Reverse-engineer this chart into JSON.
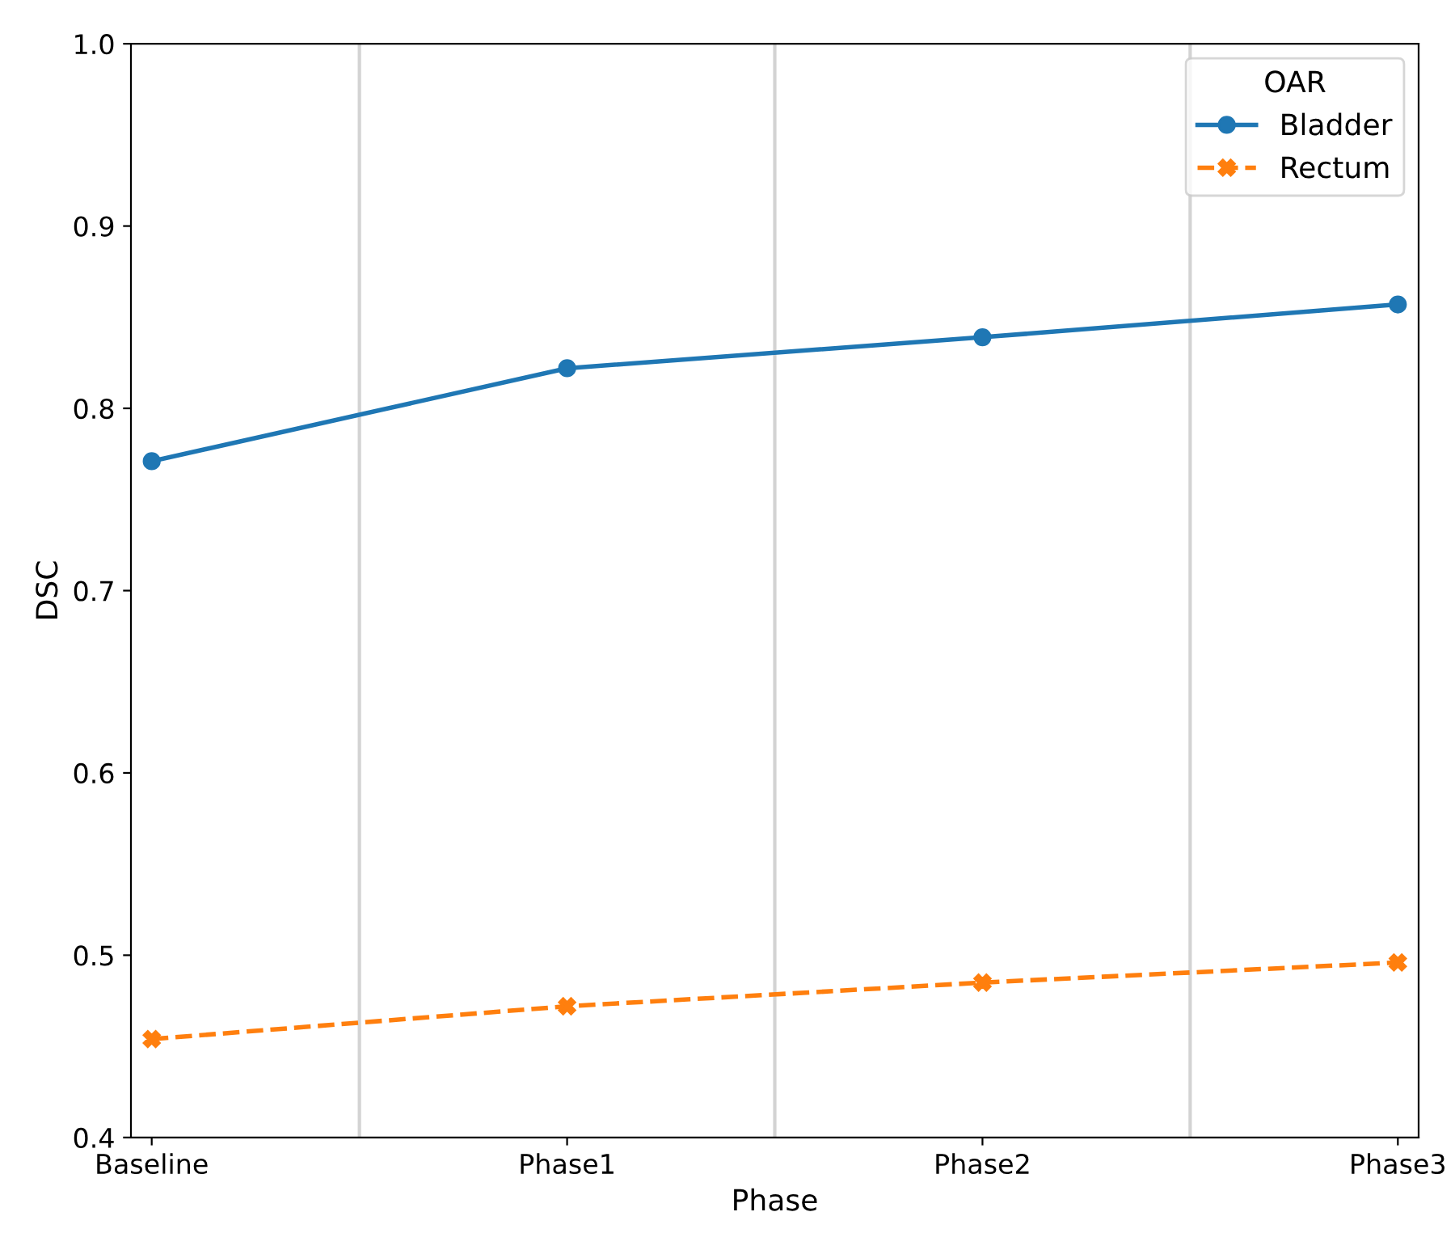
{
  "chart_data": {
    "type": "line",
    "xlabel": "Phase",
    "ylabel": "DSC",
    "legend_title": "OAR",
    "legend": "top right",
    "categories": [
      "Baseline",
      "Phase1",
      "Phase2",
      "Phase3"
    ],
    "series": [
      {
        "name": "Bladder",
        "color": "#1f77b4",
        "marker": "circle",
        "line_style": "solid",
        "values": [
          0.771,
          0.822,
          0.839,
          0.857
        ]
      },
      {
        "name": "Rectum",
        "color": "#ff7f0e",
        "marker": "cross",
        "line_style": "dashed",
        "values": [
          0.454,
          0.472,
          0.485,
          0.496
        ]
      }
    ],
    "ylim": [
      0.4,
      1.0
    ],
    "yticks": [
      0.4,
      0.5,
      0.6,
      0.7,
      0.8,
      0.9,
      {
        "value": 1.0,
        "label": "1.0"
      }
    ],
    "grid": false
  }
}
